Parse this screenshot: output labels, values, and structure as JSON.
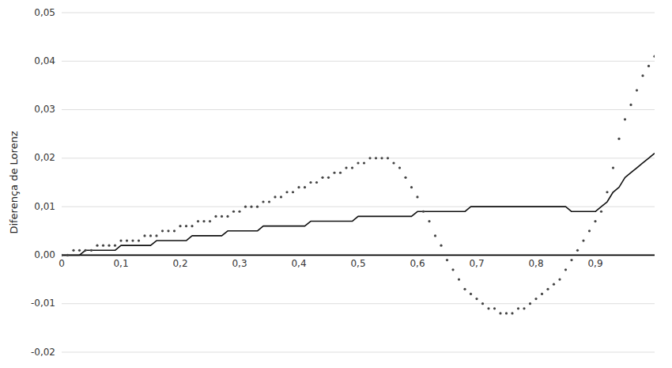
{
  "chart_data": {
    "type": "line",
    "y_label": "Diferença de Lorenz",
    "ylim": [
      -0.02,
      0.05
    ],
    "xlim": [
      0,
      1.0
    ],
    "yticks": [
      {
        "value": -0.02,
        "label": "-0,02"
      },
      {
        "value": -0.01,
        "label": "-0,01"
      },
      {
        "value": 0,
        "label": "0,00"
      },
      {
        "value": 0.01,
        "label": "0,01"
      },
      {
        "value": 0.02,
        "label": "0,02"
      },
      {
        "value": 0.03,
        "label": "0,03"
      },
      {
        "value": 0.04,
        "label": "0,04"
      },
      {
        "value": 0.05,
        "label": "0,05"
      }
    ],
    "xticks": [
      0,
      {
        "value": 0.1,
        "label": "0,1"
      },
      {
        "value": 0.2,
        "label": "0,2"
      },
      {
        "value": 0.3,
        "label": "0,3"
      },
      {
        "value": 0.4,
        "label": "0,4"
      },
      {
        "value": 0.5,
        "label": "0,5"
      },
      {
        "value": 0.6,
        "label": "0,6"
      },
      {
        "value": 0.7,
        "label": "0,7"
      },
      {
        "value": 0.8,
        "label": "0,8"
      },
      {
        "value": 0.9,
        "label": "0,9"
      }
    ],
    "grid": true,
    "x": [
      0.0,
      0.01,
      0.02,
      0.03,
      0.04,
      0.05,
      0.06,
      0.07,
      0.08,
      0.09,
      0.1,
      0.11,
      0.12,
      0.13,
      0.14,
      0.15,
      0.16,
      0.17,
      0.18,
      0.19,
      0.2,
      0.21,
      0.22,
      0.23,
      0.24,
      0.25,
      0.26,
      0.27,
      0.28,
      0.29,
      0.3,
      0.31,
      0.32,
      0.33,
      0.34,
      0.35,
      0.36,
      0.37,
      0.38,
      0.39,
      0.4,
      0.41,
      0.42,
      0.43,
      0.44,
      0.45,
      0.46,
      0.47,
      0.48,
      0.49,
      0.5,
      0.51,
      0.52,
      0.53,
      0.54,
      0.55,
      0.56,
      0.57,
      0.58,
      0.59,
      0.6,
      0.61,
      0.62,
      0.63,
      0.64,
      0.65,
      0.66,
      0.67,
      0.68,
      0.69,
      0.7,
      0.71,
      0.72,
      0.73,
      0.74,
      0.75,
      0.76,
      0.77,
      0.78,
      0.79,
      0.8,
      0.81,
      0.82,
      0.83,
      0.84,
      0.85,
      0.86,
      0.87,
      0.88,
      0.89,
      0.9,
      0.91,
      0.92,
      0.93,
      0.94,
      0.95,
      0.96,
      0.97,
      0.98,
      0.99,
      1.0
    ],
    "series": [
      {
        "color": "#111111",
        "line_style": "solid",
        "marker": "none",
        "values": [
          0.0,
          0.0,
          0.0,
          0.0,
          0.001,
          0.001,
          0.001,
          0.001,
          0.001,
          0.001,
          0.002,
          0.002,
          0.002,
          0.002,
          0.002,
          0.002,
          0.003,
          0.003,
          0.003,
          0.003,
          0.003,
          0.003,
          0.004,
          0.004,
          0.004,
          0.004,
          0.004,
          0.004,
          0.005,
          0.005,
          0.005,
          0.005,
          0.005,
          0.005,
          0.006,
          0.006,
          0.006,
          0.006,
          0.006,
          0.006,
          0.006,
          0.006,
          0.007,
          0.007,
          0.007,
          0.007,
          0.007,
          0.007,
          0.007,
          0.007,
          0.008,
          0.008,
          0.008,
          0.008,
          0.008,
          0.008,
          0.008,
          0.008,
          0.008,
          0.008,
          0.009,
          0.009,
          0.009,
          0.009,
          0.009,
          0.009,
          0.009,
          0.009,
          0.009,
          0.01,
          0.01,
          0.01,
          0.01,
          0.01,
          0.01,
          0.01,
          0.01,
          0.01,
          0.01,
          0.01,
          0.01,
          0.01,
          0.01,
          0.01,
          0.01,
          0.01,
          0.009,
          0.009,
          0.009,
          0.009,
          0.009,
          0.01,
          0.011,
          0.013,
          0.014,
          0.016,
          0.017,
          0.018,
          0.019,
          0.02,
          0.021
        ]
      },
      {
        "color": "#444444",
        "line_style": "none",
        "marker": "dot",
        "values": [
          0.0,
          0.0,
          0.001,
          0.001,
          0.001,
          0.001,
          0.002,
          0.002,
          0.002,
          0.002,
          0.003,
          0.003,
          0.003,
          0.003,
          0.004,
          0.004,
          0.004,
          0.005,
          0.005,
          0.005,
          0.006,
          0.006,
          0.006,
          0.007,
          0.007,
          0.007,
          0.008,
          0.008,
          0.008,
          0.009,
          0.009,
          0.01,
          0.01,
          0.01,
          0.011,
          0.011,
          0.012,
          0.012,
          0.013,
          0.013,
          0.014,
          0.014,
          0.015,
          0.015,
          0.016,
          0.016,
          0.017,
          0.017,
          0.018,
          0.018,
          0.019,
          0.019,
          0.02,
          0.02,
          0.02,
          0.02,
          0.019,
          0.018,
          0.016,
          0.014,
          0.012,
          0.009,
          0.007,
          0.004,
          0.002,
          -0.001,
          -0.003,
          -0.005,
          -0.007,
          -0.008,
          -0.009,
          -0.01,
          -0.011,
          -0.011,
          -0.012,
          -0.012,
          -0.012,
          -0.011,
          -0.011,
          -0.01,
          -0.009,
          -0.008,
          -0.007,
          -0.006,
          -0.005,
          -0.003,
          -0.001,
          0.001,
          0.003,
          0.005,
          0.007,
          0.009,
          0.013,
          0.018,
          0.024,
          0.028,
          0.031,
          0.034,
          0.037,
          0.039,
          0.041
        ]
      }
    ]
  }
}
